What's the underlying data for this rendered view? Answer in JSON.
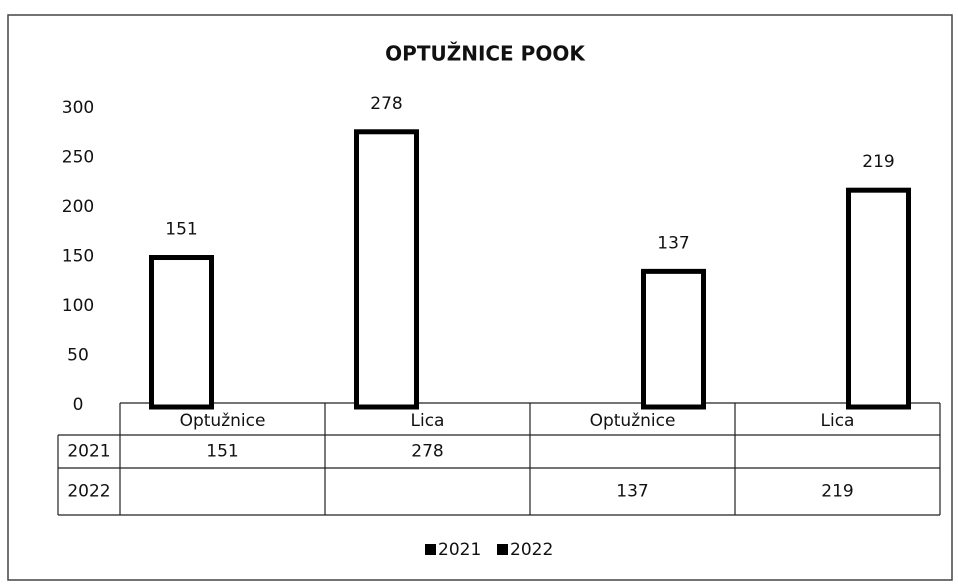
{
  "chart_data": {
    "type": "bar",
    "title": "OPTUŽNICE POOK",
    "categories": [
      "Optužnice",
      "Lica",
      "Optužnice",
      "Lica"
    ],
    "series": [
      {
        "name": "2021",
        "color": "#000000",
        "values": [
          151,
          278,
          null,
          null
        ]
      },
      {
        "name": "2022",
        "color": "#000000",
        "values": [
          null,
          null,
          137,
          219
        ]
      }
    ],
    "ylim": [
      0,
      300
    ],
    "yticks": [
      0,
      50,
      100,
      150,
      200,
      250,
      300
    ],
    "grid": false,
    "legend": "bottom"
  }
}
